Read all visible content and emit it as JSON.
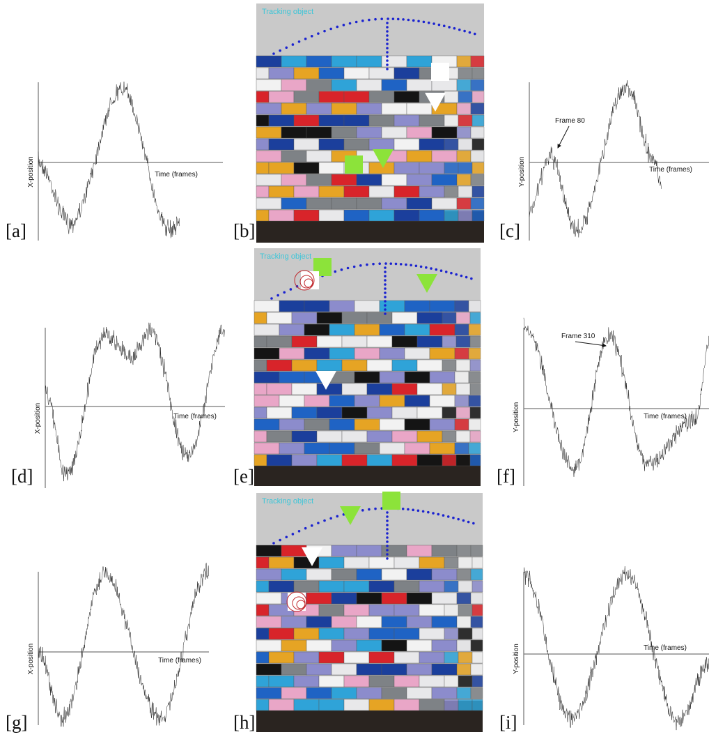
{
  "panels": [
    {
      "label": "[a]",
      "y_label": "X-position",
      "x_label": "Time (frames)"
    },
    {
      "label": "[b]",
      "caption": "Tracking object"
    },
    {
      "label": "[c]",
      "y_label": "Y-position",
      "x_label": "Time (frames)",
      "annotation": "Frame 80"
    },
    {
      "label": "[d]",
      "y_label": "X-position",
      "x_label": "Time (frames)"
    },
    {
      "label": "[e]",
      "caption": "Tracking object"
    },
    {
      "label": "[f]",
      "y_label": "Y-position",
      "x_label": "Time (frames)",
      "annotation": "Frame 310"
    },
    {
      "label": "[g]",
      "y_label": "X-position",
      "x_label": "Time (frames)"
    },
    {
      "label": "[h]",
      "caption": "Tracking object"
    },
    {
      "label": "[i]",
      "y_label": "Y-position",
      "x_label": "Time (frames)"
    }
  ]
}
